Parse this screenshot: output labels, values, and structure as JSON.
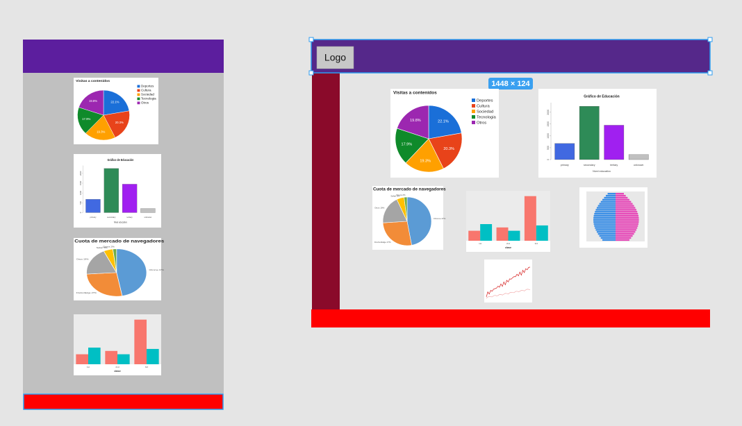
{
  "header": {
    "logo": "Logo"
  },
  "selection_badge": "1448 × 124",
  "charts": [
    {
      "type": "pie",
      "title": "Visitas a contenidos",
      "categories": [
        "Deportes",
        "Cultura",
        "Sociedad",
        "Tecnologia",
        "Otros"
      ],
      "values": [
        22.1,
        20.3,
        19.3,
        17.9,
        19.8
      ],
      "value_labels": [
        "22.1%",
        "20.3%",
        "19.3%",
        "17.9%",
        "19.8%"
      ],
      "colors": [
        "#1a6fd8",
        "#e8431a",
        "#ffa000",
        "#0f8a2a",
        "#9c27b0"
      ]
    },
    {
      "type": "bar",
      "title": "Gráfico de Educación",
      "categories": [
        "primary",
        "secondary",
        "tertiary",
        "unknown"
      ],
      "values": [
        680,
        2250,
        1450,
        210
      ],
      "colors": [
        "#4169e1",
        "#2e8b57",
        "#a020f0",
        "#c0c0c0"
      ],
      "xlabel": "Nivel educativo",
      "ylim": [
        0,
        2400
      ],
      "yticks": [
        0,
        500,
        1000,
        1500,
        2000
      ]
    },
    {
      "type": "pie",
      "title": "Cuota de mercado de navegadores",
      "categories": [
        "Chrome",
        "Firefox/Edge",
        "Otros",
        "Safari",
        "Opera"
      ],
      "values": [
        47,
        27,
        19,
        5,
        2
      ],
      "value_labels": [
        "Chrome 47%",
        "Firefox/Edge 27%",
        "Otros 19%",
        "Safari 5%",
        "Opera 2%"
      ],
      "colors": [
        "#5b9bd5",
        "#f28c38",
        "#a5a5a5",
        "#ffc000",
        "#70ad47"
      ]
    },
    {
      "type": "grouped-bar",
      "xlabel": "clase",
      "categories": [
        "1st",
        "2nd",
        "3rd"
      ],
      "series": [
        {
          "color": "#f8766d",
          "values": [
            15,
            20,
            67
          ]
        },
        {
          "color": "#00bfc4",
          "values": [
            25,
            15,
            23
          ]
        }
      ],
      "ylim": [
        0,
        75
      ]
    }
  ]
}
